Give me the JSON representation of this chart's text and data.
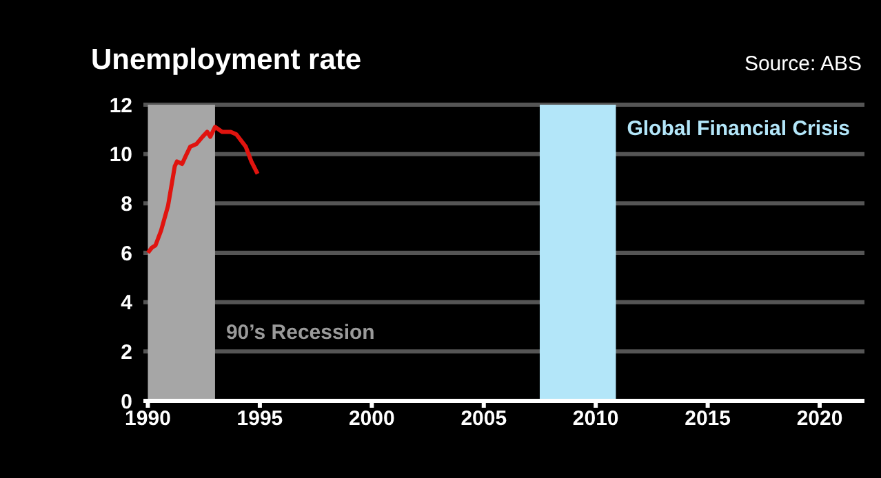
{
  "chart_data": {
    "type": "line",
    "title": "Unemployment rate",
    "annotations": [
      "Source: ABS"
    ],
    "series": [
      {
        "color": "#e0140f",
        "x": [
          1990.0,
          1990.17,
          1990.34,
          1990.59,
          1990.9,
          1991.2,
          1991.3,
          1991.53,
          1991.68,
          1991.89,
          1992.16,
          1992.44,
          1992.65,
          1992.79,
          1993.0,
          1993.32,
          1993.7,
          1993.95,
          1994.37,
          1994.62,
          1994.9
        ],
        "values": [
          6.0,
          6.2,
          6.3,
          6.9,
          7.9,
          9.5,
          9.7,
          9.6,
          9.9,
          10.3,
          10.4,
          10.7,
          10.9,
          10.7,
          11.1,
          10.9,
          10.9,
          10.8,
          10.3,
          9.7,
          9.2
        ]
      }
    ],
    "xlim": [
      1989.8,
      2022
    ],
    "xticks": [
      1990,
      1995,
      2000,
      2005,
      2010,
      2015,
      2020
    ],
    "ylim": [
      0,
      12
    ],
    "yticks": [
      0,
      2,
      4,
      6,
      8,
      10,
      12
    ],
    "grid": "y",
    "marker": "none",
    "line_style": "solid",
    "bands": [
      {
        "axis": "x",
        "from": 1990,
        "to": 1993,
        "label": "90’s Recession",
        "color": "#a6a6a6"
      },
      {
        "axis": "x",
        "from": 2007.5,
        "to": 2010.9,
        "label": "Global Financial Crisis",
        "color": "#b3e6f9"
      }
    ]
  }
}
